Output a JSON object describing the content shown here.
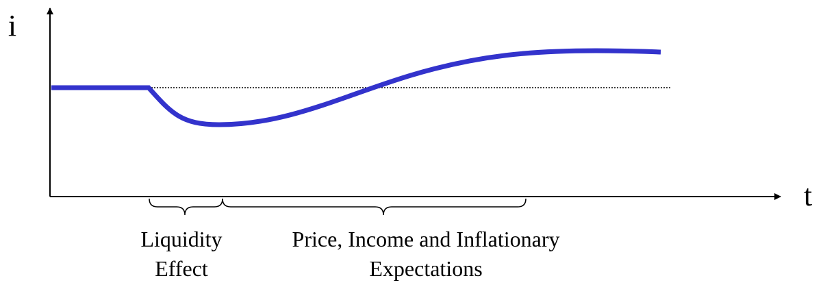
{
  "y_axis_label": "i",
  "x_axis_label": "t",
  "braces": [
    {
      "lines": [
        "Liquidity",
        "Effect"
      ]
    },
    {
      "lines": [
        "Price, Income and Inflationary",
        "Expectations"
      ]
    }
  ]
}
